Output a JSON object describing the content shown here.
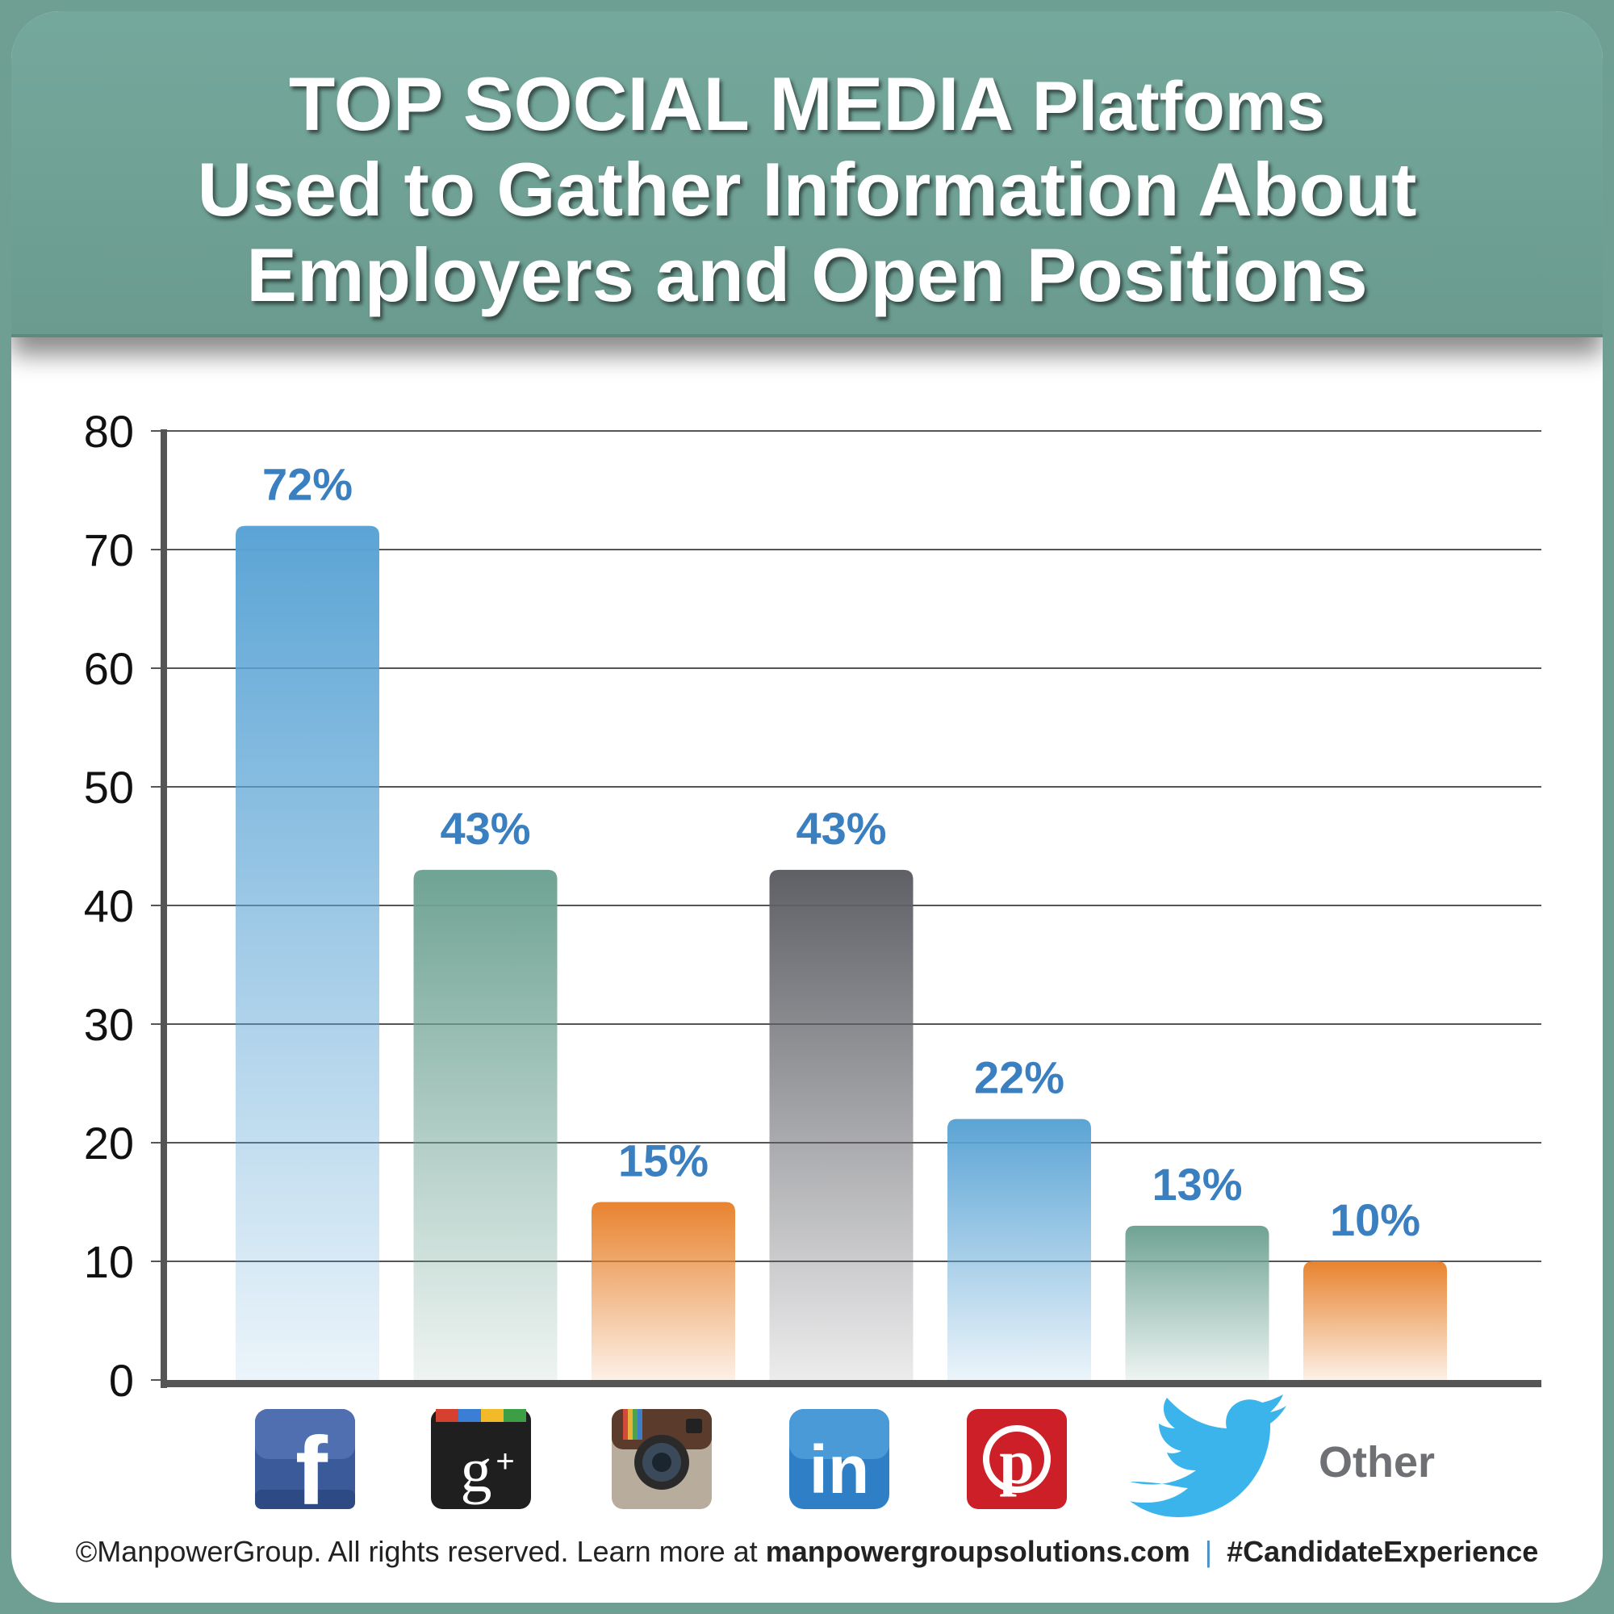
{
  "header": {
    "title_line1_bold": "TOP SOCIAL MEDIA",
    "title_line1_rest": "Platfoms",
    "title_line2": "Used to Gather Information About",
    "title_line3": "Employers and Open Positions"
  },
  "chart_data": {
    "type": "bar",
    "categories": [
      "facebook",
      "google-plus",
      "instagram",
      "linkedin",
      "pinterest",
      "twitter",
      "Other"
    ],
    "values": [
      72,
      43,
      15,
      43,
      22,
      13,
      10
    ],
    "value_labels": [
      "72%",
      "43%",
      "15%",
      "43%",
      "22%",
      "13%",
      "10%"
    ],
    "ylim": [
      0,
      80
    ],
    "yticks": [
      "0",
      "10",
      "20",
      "30",
      "40",
      "50",
      "60",
      "70",
      "80"
    ],
    "grid": true,
    "bar_colors": [
      "#5ba4d5",
      "#6fa394",
      "#e8832f",
      "#5f6066",
      "#5ba4d5",
      "#6fa394",
      "#e8832f"
    ],
    "label_color": "#3a7fbf"
  },
  "icons": [
    "facebook-icon",
    "google-plus-icon",
    "instagram-icon",
    "linkedin-icon",
    "pinterest-icon",
    "twitter-icon"
  ],
  "other_label": "Other",
  "footer": {
    "copyright": "©ManpowerGroup. All rights reserved. Learn more at",
    "url": "manpowergroupsolutions.com",
    "separator": "|",
    "hashtag": "#CandidateExperience"
  }
}
